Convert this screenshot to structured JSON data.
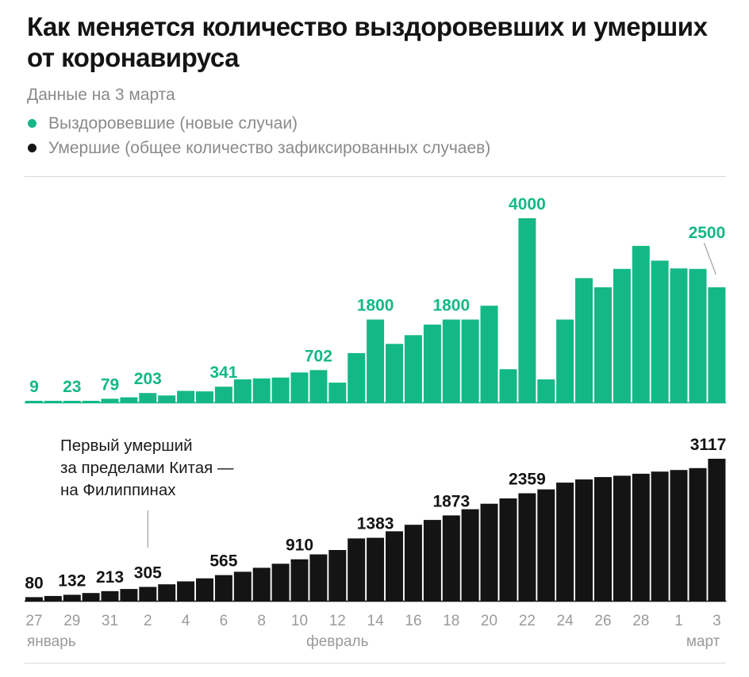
{
  "title": "Как меняется количество выздоровевших и умерших от коронавируса",
  "subtitle": "Данные на 3 марта",
  "legend": [
    {
      "label": "Выздоровевшие (новые случаи)",
      "color": "#14b886"
    },
    {
      "label": "Умершие (общее количество зафиксированных случаев)",
      "color": "#141414"
    }
  ],
  "annotation": {
    "lines": [
      "Первый умерший",
      "за пределами Китая —",
      "на Филиппинах"
    ]
  },
  "x_ticks": [
    "27",
    "29",
    "31",
    "2",
    "4",
    "6",
    "8",
    "10",
    "12",
    "14",
    "16",
    "18",
    "20",
    "22",
    "24",
    "26",
    "28",
    "1",
    "3"
  ],
  "month_labels": [
    "январь",
    "февраль",
    "март"
  ],
  "chart_data": [
    {
      "type": "bar",
      "series": [
        {
          "name": "Выздоровевшие (новые случаи)",
          "color": "#14b886"
        }
      ],
      "x": [
        "27 января",
        "28 января",
        "29 января",
        "30 января",
        "31 января",
        "1 февраля",
        "2 февраля",
        "3 февраля",
        "4 февраля",
        "5 февраля",
        "6 февраля",
        "7 февраля",
        "8 февраля",
        "9 февраля",
        "10 февраля",
        "11 февраля",
        "12 февраля",
        "13 февраля",
        "14 февраля",
        "15 февраля",
        "16 февраля",
        "17 февраля",
        "18 февраля",
        "19 февраля",
        "20 февраля",
        "21 февраля",
        "22 февраля",
        "23 февраля",
        "24 февраля",
        "25 февраля",
        "26 февраля",
        "27 февраля",
        "28 февраля",
        "29 февраля",
        "1 марта",
        "2 марта",
        "3 марта"
      ],
      "values": [
        9,
        15,
        23,
        30,
        79,
        110,
        203,
        150,
        250,
        240,
        341,
        500,
        520,
        540,
        650,
        702,
        430,
        1070,
        1800,
        1270,
        1460,
        1690,
        1800,
        1800,
        2100,
        720,
        4000,
        500,
        1800,
        2700,
        2500,
        2900,
        3400,
        3080,
        2910,
        2900,
        2500
      ],
      "labels": [
        {
          "i": 0,
          "text": "9"
        },
        {
          "i": 2,
          "text": "23"
        },
        {
          "i": 4,
          "text": "79"
        },
        {
          "i": 6,
          "text": "203"
        },
        {
          "i": 10,
          "text": "341"
        },
        {
          "i": 15,
          "text": "702"
        },
        {
          "i": 18,
          "text": "1800"
        },
        {
          "i": 22,
          "text": "1800"
        },
        {
          "i": 26,
          "text": "4000"
        },
        {
          "i": 36,
          "text": "2500"
        }
      ]
    },
    {
      "type": "bar",
      "series": [
        {
          "name": "Умершие (общее количество зафиксированных случаев)",
          "color": "#141414"
        }
      ],
      "x": [
        "27 января",
        "28 января",
        "29 января",
        "30 января",
        "31 января",
        "1 февраля",
        "2 февраля",
        "3 февраля",
        "4 февраля",
        "5 февраля",
        "6 февраля",
        "7 февраля",
        "8 февраля",
        "9 февраля",
        "10 февраля",
        "11 февраля",
        "12 февраля",
        "13 февраля",
        "14 февраля",
        "15 февраля",
        "16 февраля",
        "17 февраля",
        "18 февраля",
        "19 февраля",
        "20 февраля",
        "21 февраля",
        "22 февраля",
        "23 февраля",
        "24 февраля",
        "25 февраля",
        "26 февраля",
        "27 февраля",
        "28 февраля",
        "29 февраля",
        "1 марта",
        "2 марта",
        "3 марта"
      ],
      "values": [
        80,
        106,
        132,
        170,
        213,
        259,
        305,
        362,
        426,
        492,
        565,
        638,
        724,
        813,
        910,
        1018,
        1115,
        1369,
        1383,
        1526,
        1669,
        1775,
        1873,
        2009,
        2129,
        2247,
        2359,
        2445,
        2592,
        2663,
        2715,
        2744,
        2788,
        2835,
        2870,
        2912,
        3117
      ],
      "labels": [
        {
          "i": 0,
          "text": "80"
        },
        {
          "i": 2,
          "text": "132"
        },
        {
          "i": 4,
          "text": "213"
        },
        {
          "i": 6,
          "text": "305"
        },
        {
          "i": 10,
          "text": "565"
        },
        {
          "i": 14,
          "text": "910"
        },
        {
          "i": 18,
          "text": "1383"
        },
        {
          "i": 22,
          "text": "1873"
        },
        {
          "i": 26,
          "text": "2359"
        },
        {
          "i": 36,
          "text": "3117"
        }
      ]
    }
  ]
}
